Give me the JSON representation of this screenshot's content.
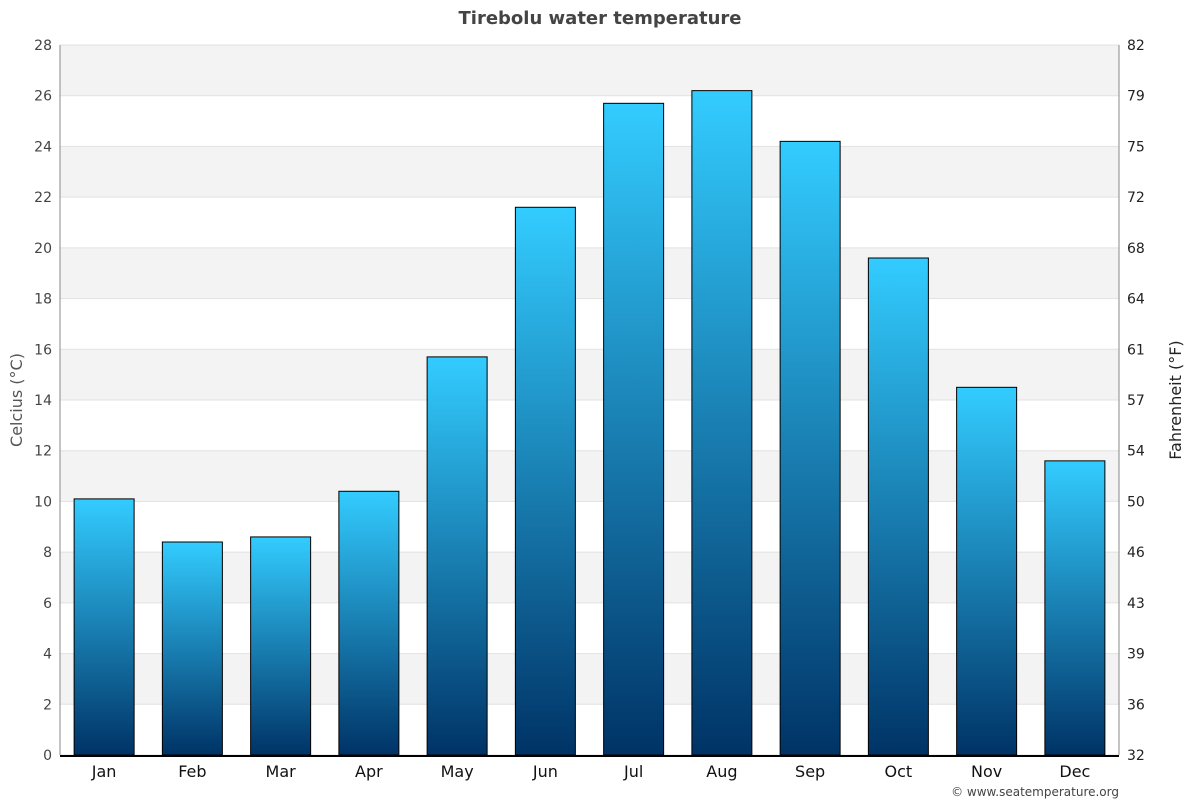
{
  "chart_data": {
    "type": "bar",
    "title": "Tirebolu water temperature",
    "ylabel": "Celcius (°C)",
    "ylabel_right": "Fahrenheit (°F)",
    "categories": [
      "Jan",
      "Feb",
      "Mar",
      "Apr",
      "May",
      "Jun",
      "Jul",
      "Aug",
      "Sep",
      "Oct",
      "Nov",
      "Dec"
    ],
    "values": [
      10.1,
      8.4,
      8.6,
      10.4,
      15.7,
      21.6,
      25.7,
      26.2,
      24.2,
      19.6,
      14.5,
      11.6
    ],
    "ylim": [
      0,
      28
    ],
    "yticks": [
      0,
      2,
      4,
      6,
      8,
      10,
      12,
      14,
      16,
      18,
      20,
      22,
      24,
      26,
      28
    ],
    "yticks_right": [
      32,
      36,
      39,
      43,
      46,
      50,
      54,
      57,
      61,
      64,
      68,
      72,
      75,
      79,
      82
    ],
    "grid": true,
    "colors": {
      "bar_top": "#33ccff",
      "bar_bottom": "#003366",
      "band": "#f3f3f3",
      "title": "#444444"
    }
  },
  "footer": {
    "credit": "© www.seatemperature.org"
  }
}
